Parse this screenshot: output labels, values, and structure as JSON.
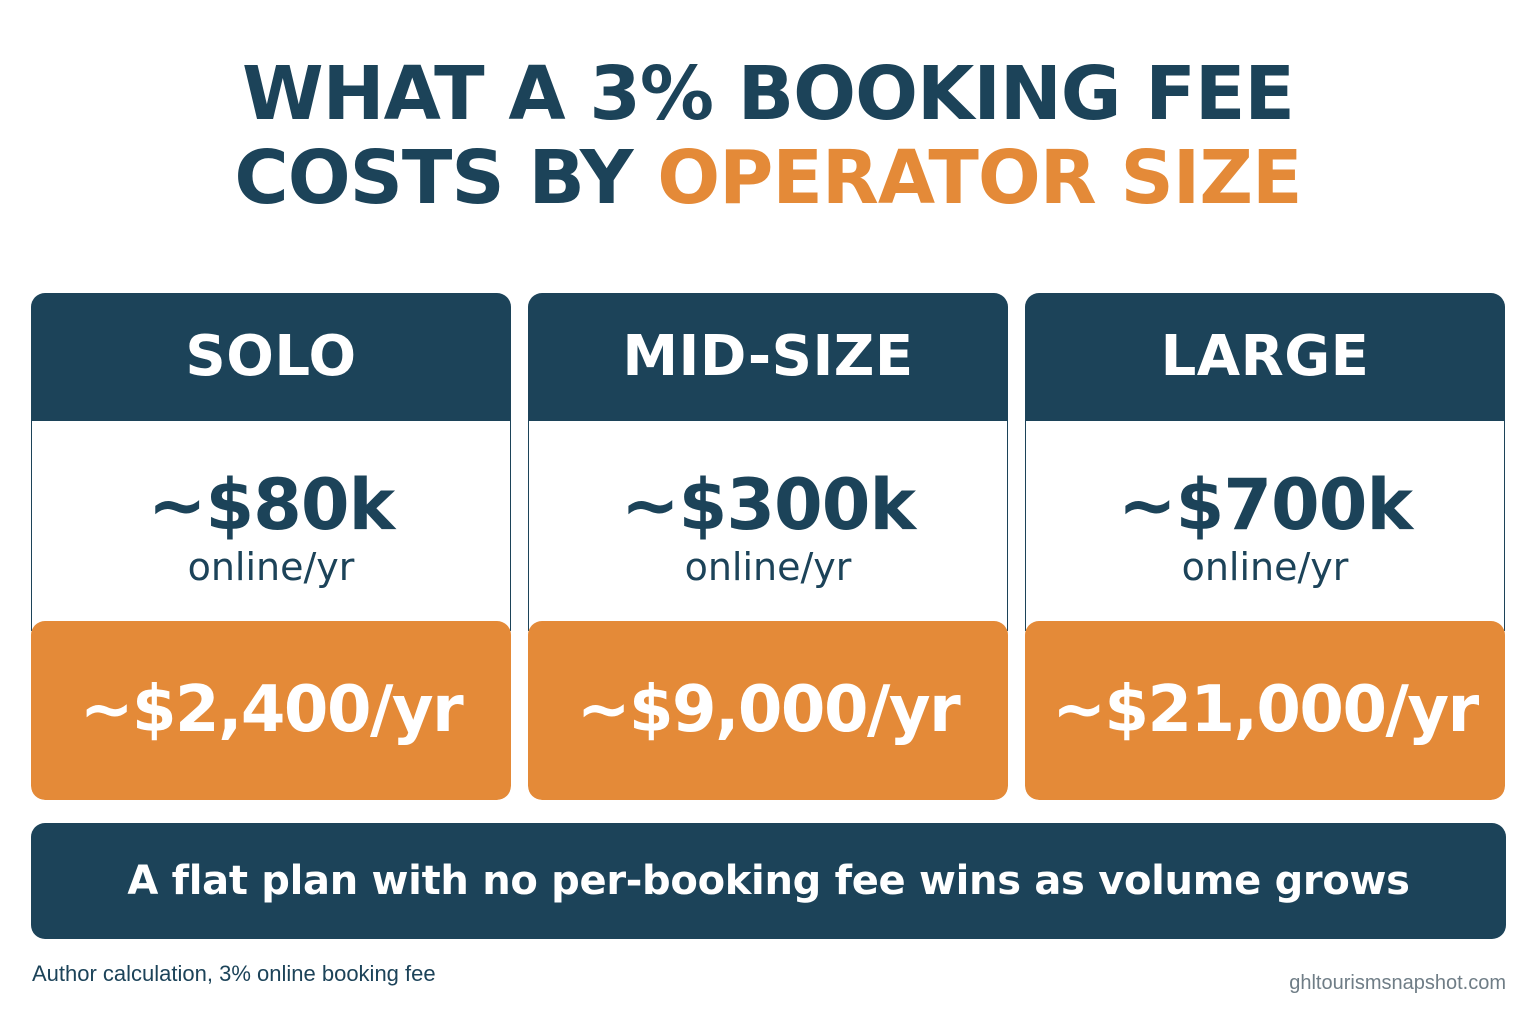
{
  "title": {
    "line1": "WHAT A 3% BOOKING FEE",
    "line2_prefix": "COSTS BY ",
    "line2_accent": "OPERATOR SIZE"
  },
  "tiers": [
    {
      "name": "SOLO",
      "revenue": "~$80k",
      "period": "online/yr",
      "fee": "~$2,400/yr"
    },
    {
      "name": "MID-SIZE",
      "revenue": "~$300k",
      "period": "online/yr",
      "fee": "~$9,000/yr"
    },
    {
      "name": "LARGE",
      "revenue": "~$700k",
      "period": "online/yr",
      "fee": "~$21,000/yr"
    }
  ],
  "banner": "A flat plan with no per-booking fee wins as volume grows",
  "source": "Author calculation, 3% online booking fee",
  "site": "ghltourismsnapshot.com",
  "colors": {
    "navy": "#1c4359",
    "orange": "#e48a38",
    "background": "#ffffff"
  }
}
